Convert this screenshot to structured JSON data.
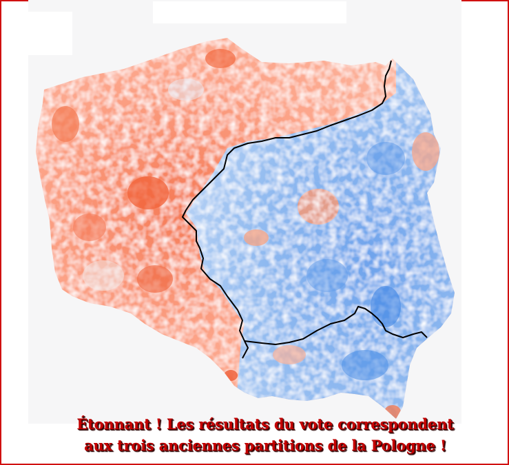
{
  "caption": {
    "line1": "Étonnant ! Les résultats du vote correspondent",
    "line2": "aux trois anciennes partitions de la Pologne !"
  },
  "colors": {
    "frame": "#d01010",
    "caption_text": "#c40000",
    "west_region": "#fc9b7e",
    "west_region_dark": "#f4653c",
    "east_region": "#8db8ef",
    "east_region_dark": "#4a8ee6",
    "partition_line": "#000000",
    "background": "#f6f6f7"
  }
}
